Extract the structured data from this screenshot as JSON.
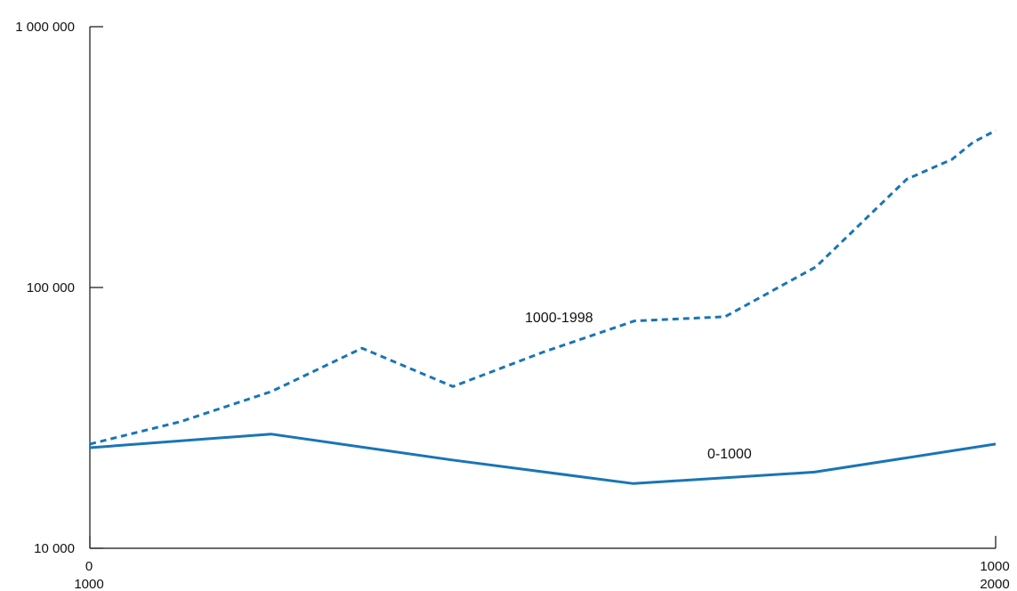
{
  "chart_data": {
    "type": "line",
    "title": "",
    "xlabel": "",
    "ylabel": "",
    "yscale": "log",
    "ylim": [
      10000,
      1000000
    ],
    "y_ticks": [
      {
        "value": 1000000,
        "label": "1 000 000"
      },
      {
        "value": 100000,
        "label": "100 000"
      },
      {
        "value": 10000,
        "label": "10 000"
      }
    ],
    "x_ticks": [
      {
        "position": 0,
        "label_top": "0",
        "label_bottom": "1000"
      },
      {
        "position": 1,
        "label_top": "1000",
        "label_bottom": "2000"
      }
    ],
    "grid": false,
    "legend": "none",
    "series": [
      {
        "name": "0-1000",
        "period": [
          0,
          1000
        ],
        "color": "#1a75b5",
        "style": "solid",
        "x": [
          0,
          200,
          400,
          600,
          800,
          1000
        ],
        "y": [
          24300,
          27400,
          21800,
          17700,
          19600,
          25100
        ]
      },
      {
        "name": "1000-1998",
        "period": [
          1000,
          1998
        ],
        "color": "#1a75b5",
        "style": "dotted",
        "x": [
          1000,
          1100,
          1200,
          1300,
          1400,
          1500,
          1600,
          1700,
          1800,
          1900,
          1950,
          1973,
          1998
        ],
        "y": [
          25100,
          30600,
          39900,
          58500,
          41700,
          56600,
          74400,
          77300,
          120000,
          260000,
          310000,
          360000,
          400000
        ]
      }
    ]
  }
}
